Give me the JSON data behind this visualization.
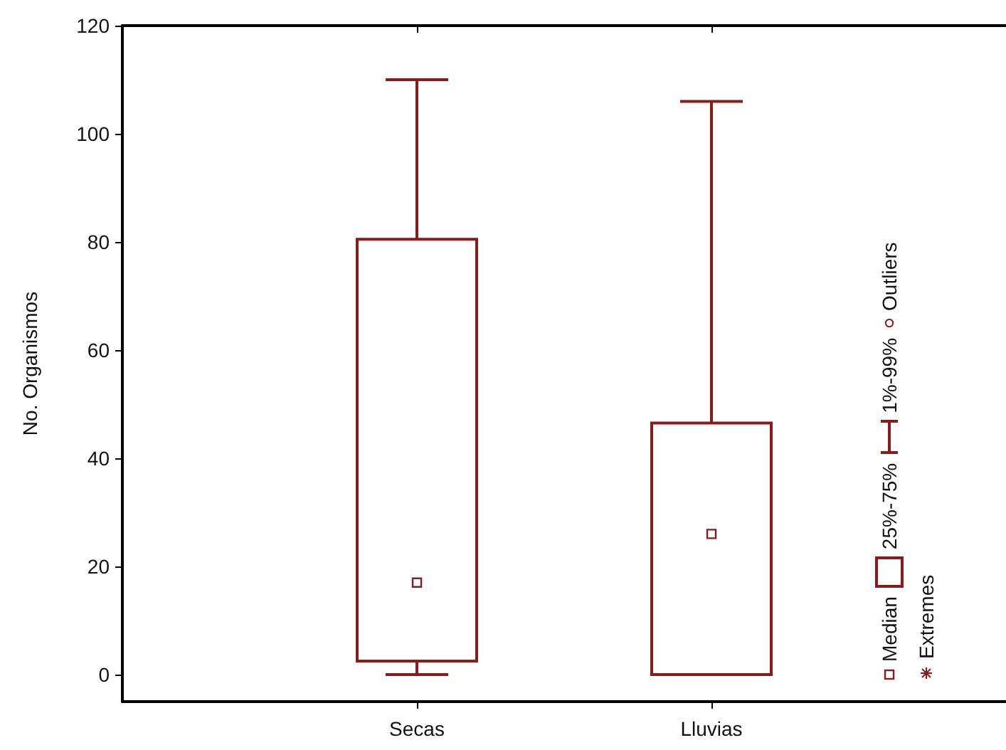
{
  "chart_data": {
    "type": "box",
    "ylabel": "No. Organismos",
    "categories": [
      "Secas",
      "Lluvias"
    ],
    "series": [
      {
        "color": "#8b1a1a",
        "boxes": [
          {
            "low": 0,
            "q1": 2.5,
            "median": 17,
            "q3": 80.5,
            "high": 110
          },
          {
            "low": 0,
            "q1": 0,
            "median": 26,
            "q3": 46.5,
            "high": 106
          }
        ]
      }
    ],
    "ylim": [
      -5,
      120
    ],
    "yticks": [
      0,
      20,
      40,
      60,
      80,
      100,
      120
    ],
    "grid": false,
    "annotations": [
      "Median",
      "25%-75%",
      "1%-99%",
      "Outliers",
      "Extremes"
    ]
  }
}
